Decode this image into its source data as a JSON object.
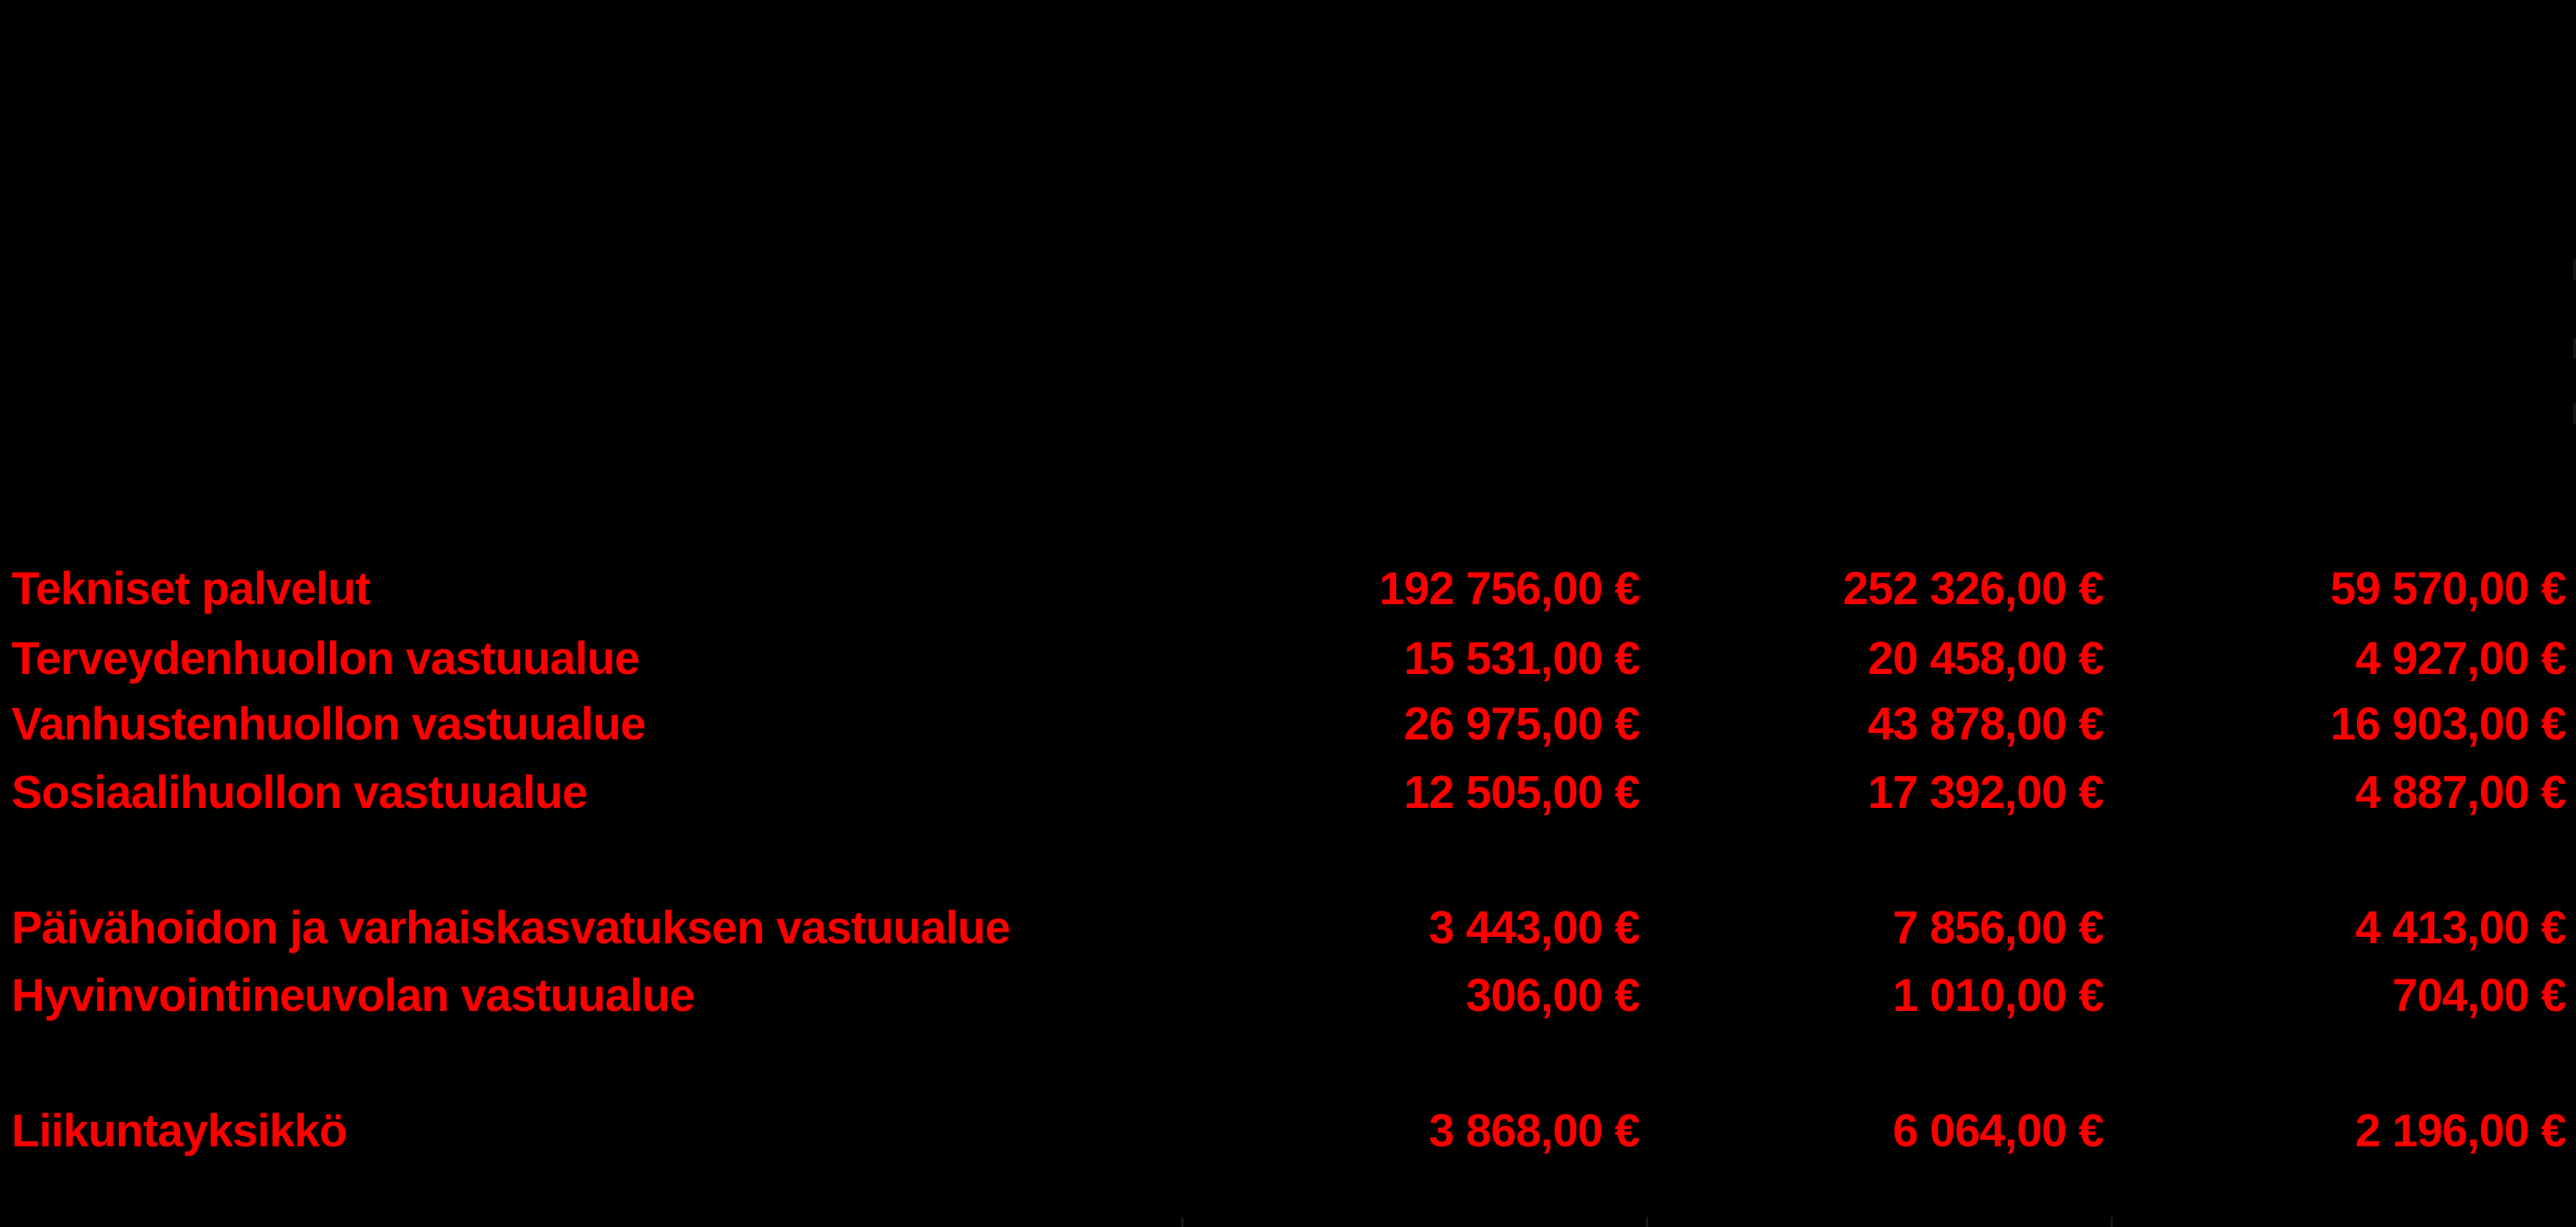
{
  "theme": {
    "text_color": "#ff0000",
    "background_color": "#000000"
  },
  "rows": [
    {
      "label": "Tekniset palvelut",
      "v1": "192 756,00 €",
      "v2": "252 326,00 €",
      "v3": "59 570,00 €"
    },
    {
      "label": "Terveydenhuollon vastuualue",
      "v1": "15 531,00 €",
      "v2": "20 458,00 €",
      "v3": "4 927,00 €"
    },
    {
      "label": "Vanhustenhuollon vastuualue",
      "v1": "26 975,00 €",
      "v2": "43 878,00 €",
      "v3": "16 903,00 €"
    },
    {
      "label": "Sosiaalihuollon vastuualue",
      "v1": "12 505,00 €",
      "v2": "17 392,00 €",
      "v3": "4 887,00 €"
    },
    {
      "label": "Päivähoidon ja varhaiskasvatuksen vastuualue",
      "v1": "3 443,00 €",
      "v2": "7 856,00 €",
      "v3": "4 413,00 €"
    },
    {
      "label": "Hyvinvointineuvolan vastuualue",
      "v1": "306,00 €",
      "v2": "1 010,00 €",
      "v3": "704,00 €"
    },
    {
      "label": "Liikuntayksikkö",
      "v1": "3 868,00 €",
      "v2": "6 064,00 €",
      "v3": "2 196,00 €"
    }
  ]
}
